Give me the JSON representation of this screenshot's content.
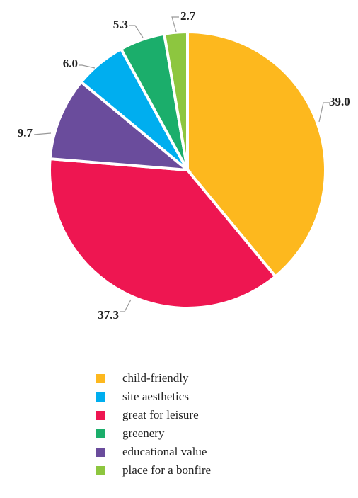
{
  "chart_data": {
    "type": "pie",
    "title": "",
    "legend_position": "bottom",
    "data_labels_shown": true,
    "slices": [
      {
        "label": "child-friendly",
        "value": 39.0,
        "value_label": "39.0",
        "color": "#FDB81E"
      },
      {
        "label": "great for leisure",
        "value": 37.3,
        "value_label": "37.3",
        "color": "#EE1651"
      },
      {
        "label": "educational value",
        "value": 9.7,
        "value_label": "9.7",
        "color": "#6A4C9C"
      },
      {
        "label": "site aesthetics",
        "value": 6.0,
        "value_label": "6.0",
        "color": "#00AEEF"
      },
      {
        "label": "greenery",
        "value": 5.3,
        "value_label": "5.3",
        "color": "#1BAE6B"
      },
      {
        "label": "place for a bonfire",
        "value": 2.7,
        "value_label": "2.7",
        "color": "#8DC63F"
      }
    ],
    "legend": [
      {
        "label": "child-friendly",
        "color": "#FDB81E"
      },
      {
        "label": "site aesthetics",
        "color": "#00AEEF"
      },
      {
        "label": "great for leisure",
        "color": "#EE1651"
      },
      {
        "label": "greenery",
        "color": "#1BAE6B"
      },
      {
        "label": "educational value",
        "color": "#6A4C9C"
      },
      {
        "label": "place for a bonfire",
        "color": "#8DC63F"
      }
    ]
  }
}
